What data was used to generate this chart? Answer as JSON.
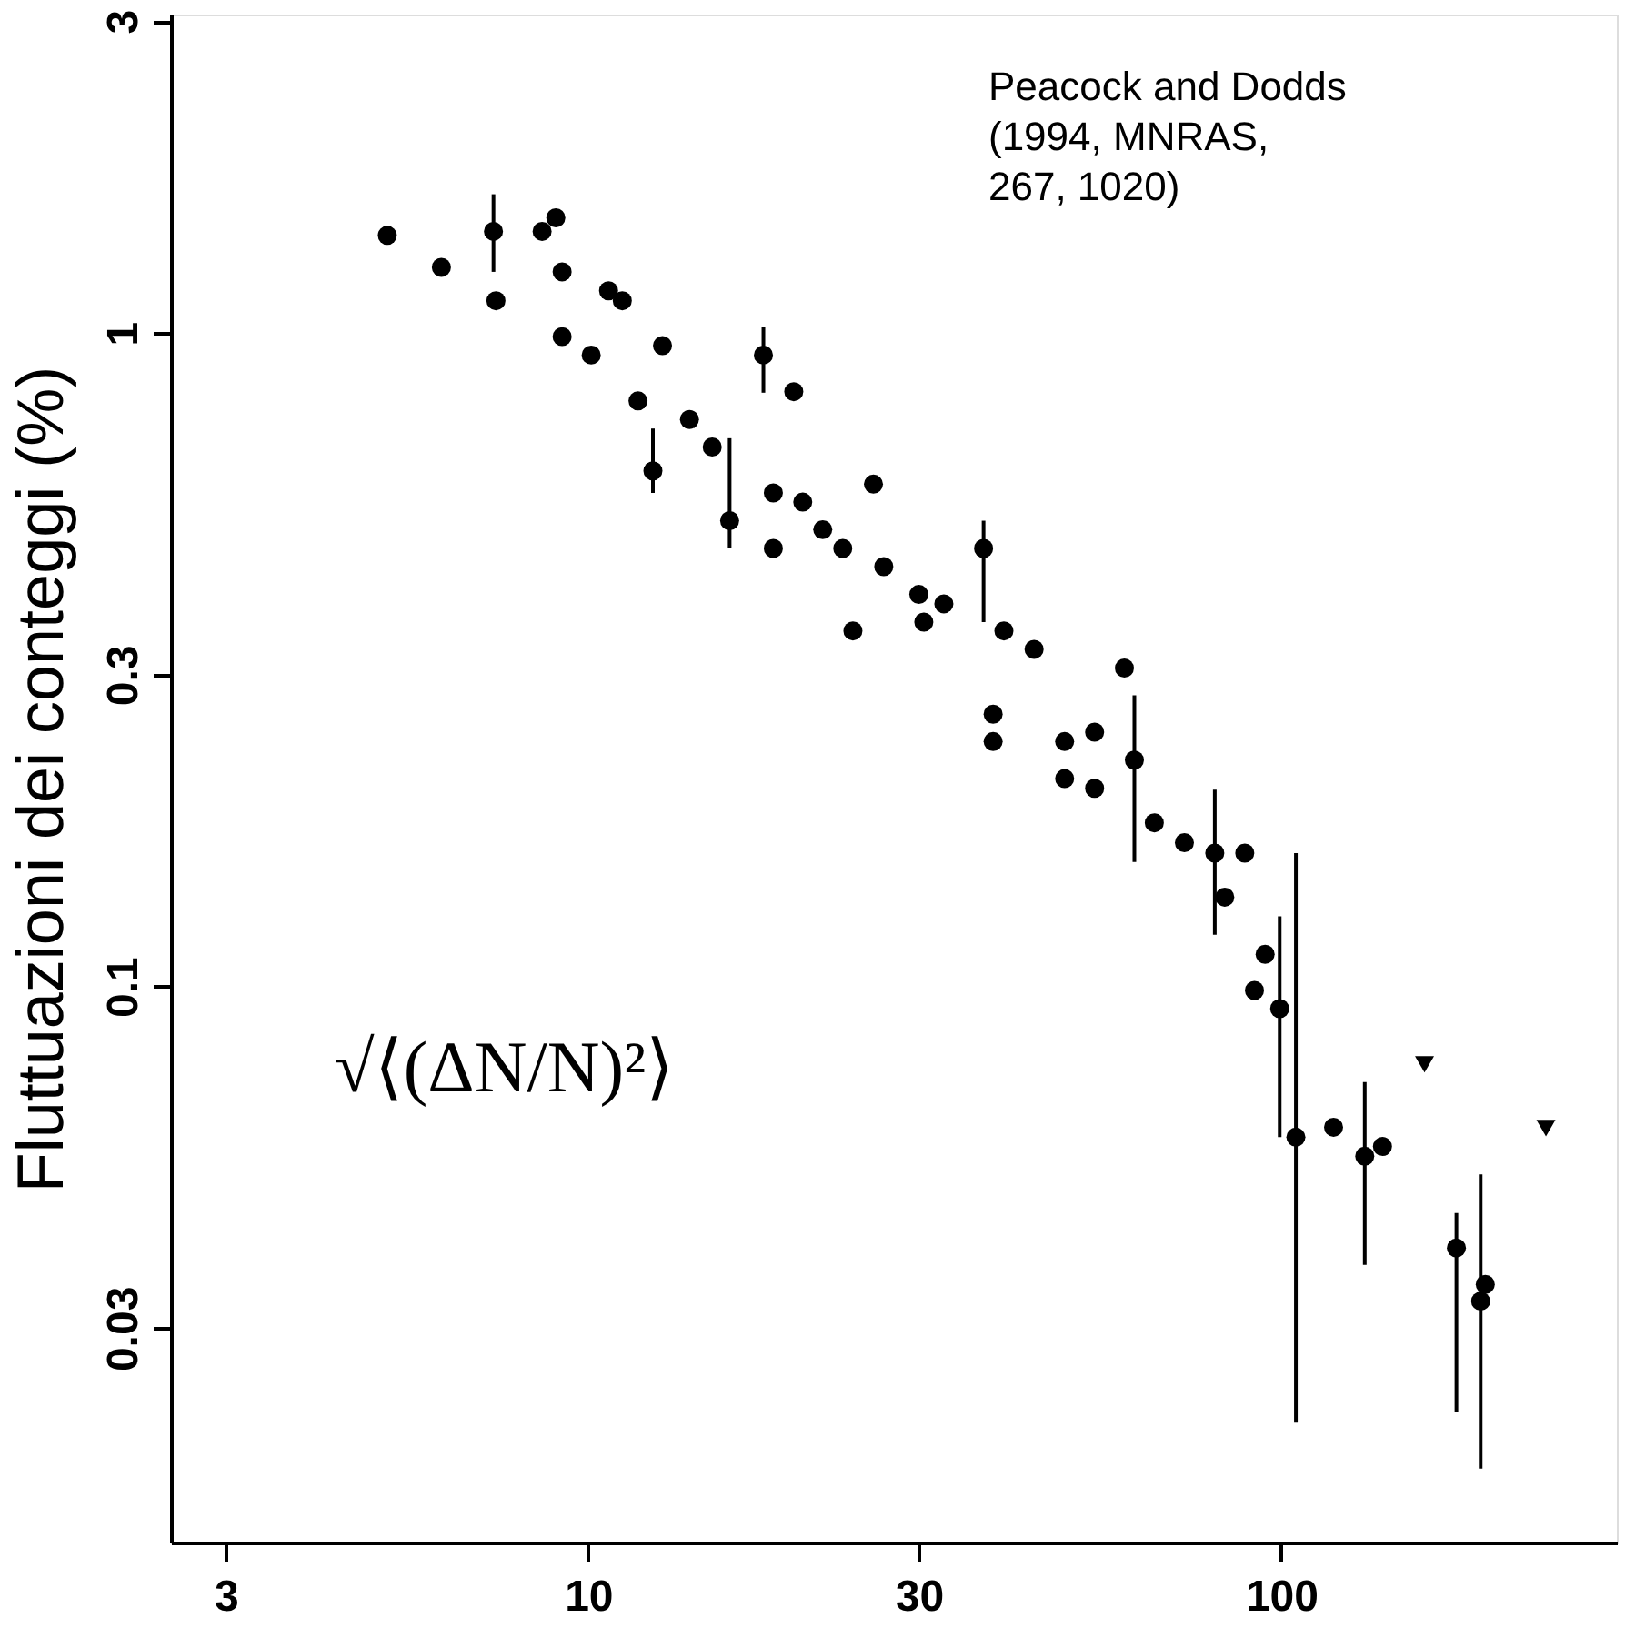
{
  "chart_data": {
    "type": "scatter",
    "ylabel": "Fluttuazioni dei conteggi (%)",
    "log": "xy",
    "xlim": [
      2.5,
      305
    ],
    "ylim": [
      0.0141,
      3.07
    ],
    "xticks": [
      3,
      10,
      30,
      100
    ],
    "yticks": [
      0.03,
      0.1,
      0.3,
      1,
      3
    ],
    "annotations": [
      "Peacock and Dodds\n(1994, MNRAS,\n267, 1020)",
      "√⟨(ΔN/N)²⟩"
    ],
    "series": [
      {
        "color": "#000000",
        "marker": "circle",
        "x": [
          5.13,
          6.14,
          7.36,
          7.3,
          8.58,
          8.98,
          9.17,
          9.17,
          10.1,
          10.7,
          11.2,
          11.8,
          12.4,
          12.8,
          14.0,
          15.1,
          16.0,
          17.9,
          19.8,
          18.5,
          18.5,
          20.4,
          21.8,
          23.3,
          25.8,
          24.1,
          26.7,
          30,
          30.5,
          32.6,
          37.2,
          38.4,
          39.8,
          44,
          38.4,
          48.7,
          53.8,
          53.8,
          59.4,
          61.4,
          48.7,
          65.6,
          72.5,
          80.2,
          82.9,
          88.6,
          91.5,
          94.8,
          99.5,
          105,
          119,
          132,
          140,
          179,
          194,
          197
        ],
        "values": [
          1.41,
          1.26,
          1.12,
          1.43,
          1.43,
          1.5,
          1.24,
          0.987,
          0.925,
          1.16,
          1.12,
          0.787,
          0.615,
          0.956,
          0.737,
          0.669,
          0.516,
          0.925,
          0.813,
          0.569,
          0.468,
          0.551,
          0.5,
          0.468,
          0.587,
          0.35,
          0.439,
          0.398,
          0.361,
          0.385,
          0.468,
          0.261,
          0.35,
          0.328,
          0.237,
          0.237,
          0.245,
          0.201,
          0.307,
          0.222,
          0.208,
          0.178,
          0.166,
          0.16,
          0.137,
          0.16,
          0.0986,
          0.112,
          0.0925,
          0.0588,
          0.0609,
          0.055,
          0.0569,
          0.0398,
          0.033,
          0.035
        ],
        "errors": [
          null,
          null,
          null,
          [
            1.24,
            1.63
          ],
          null,
          null,
          null,
          null,
          null,
          null,
          null,
          null,
          [
            0.569,
            0.714
          ],
          null,
          null,
          null,
          [
            0.468,
            0.69
          ],
          [
            0.81,
            1.02
          ],
          null,
          null,
          null,
          null,
          null,
          null,
          null,
          null,
          null,
          null,
          null,
          null,
          [
            0.361,
            0.516
          ],
          null,
          null,
          null,
          null,
          null,
          null,
          null,
          null,
          [
            0.155,
            0.279
          ],
          null,
          null,
          null,
          [
            0.12,
            0.2
          ],
          null,
          null,
          null,
          null,
          [
            0.0588,
            0.128
          ],
          [
            0.0215,
            0.16
          ],
          null,
          [
            0.0375,
            0.0714
          ],
          null,
          [
            0.0223,
            0.045
          ],
          [
            0.0183,
            0.0516
          ],
          null
        ]
      },
      {
        "color": "#000000",
        "marker": "triangle",
        "x": [
          161,
          241
        ],
        "values": [
          0.076,
          0.0607
        ]
      }
    ]
  }
}
